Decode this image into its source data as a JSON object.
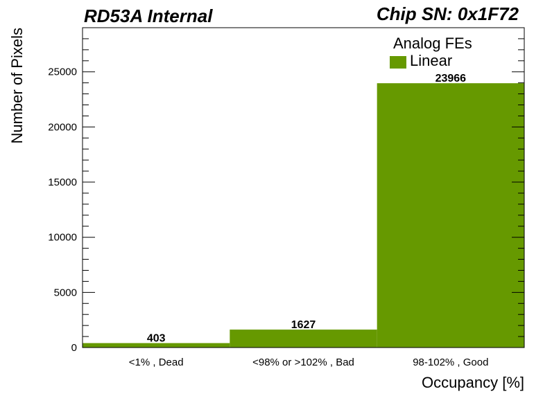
{
  "header": {
    "left_title": "RD53A Internal",
    "right_title": "Chip SN: 0x1F72"
  },
  "legend": {
    "header": "Analog FEs",
    "entries": [
      {
        "label": "Linear",
        "color": "#669900"
      }
    ],
    "placement": "top-right"
  },
  "chart_data": {
    "type": "bar",
    "categories": [
      "<1% , Dead",
      "<98% or >102% , Bad",
      "98-102% , Good"
    ],
    "series": [
      {
        "name": "Linear",
        "values": [
          403,
          1627,
          23966
        ],
        "color": "#669900"
      }
    ],
    "data_labels": [
      "403",
      "1627",
      "23966"
    ],
    "xlabel": "Occupancy [%]",
    "ylabel": "Number of Pixels",
    "ylim": [
      0,
      29000
    ],
    "yticks": [
      0,
      5000,
      10000,
      15000,
      20000,
      25000
    ],
    "grid": false
  }
}
